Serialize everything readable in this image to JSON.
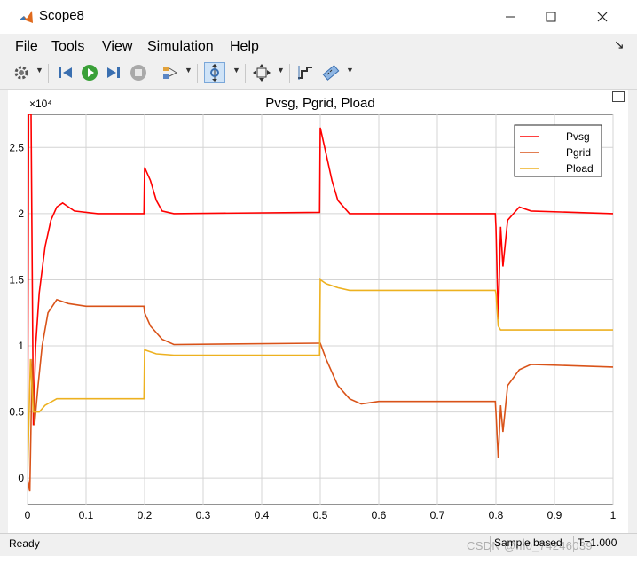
{
  "window": {
    "title": "Scope8"
  },
  "menu": {
    "items": [
      "File",
      "Tools",
      "View",
      "Simulation",
      "Help"
    ]
  },
  "toolbar": {
    "tools": [
      "settings-icon",
      "restore-icon",
      "run-icon",
      "step-forward-icon",
      "stop-icon",
      "highlight-icon",
      "zoom-icon",
      "fit-to-view-icon",
      "cursor-measure-icon",
      "signal-stats-icon"
    ]
  },
  "status": {
    "ready": "Ready",
    "sample": "Sample based",
    "time": "T=1.000"
  },
  "watermark": "CSDN @m0_74246039",
  "colors": {
    "pvsg": "#ff0000",
    "pgrid": "#d95319",
    "pload": "#edb120",
    "grid": "#d4d4d4"
  },
  "chart_data": {
    "type": "line",
    "title": "Pvsg, Pgrid, Pload",
    "exponent_label": "×10⁴",
    "xlim": [
      0,
      1
    ],
    "ylim": [
      -0.2,
      2.75
    ],
    "x_ticks": [
      0,
      0.1,
      0.2,
      0.3,
      0.4,
      0.5,
      0.6,
      0.7,
      0.8,
      0.9,
      1
    ],
    "x_tick_labels": [
      "0",
      "0.1",
      "0.2",
      "0.3",
      "0.4",
      "0.5",
      "0.6",
      "0.7",
      "0.8",
      "0.9",
      "1"
    ],
    "y_ticks": [
      0,
      0.5,
      1,
      1.5,
      2,
      2.5
    ],
    "y_tick_labels": [
      "0",
      "0.5",
      "1",
      "1.5",
      "2",
      "2.5"
    ],
    "legend_position": "top-right",
    "series": [
      {
        "name": "Pvsg",
        "color": "#ff0000",
        "points": [
          [
            0,
            0
          ],
          [
            0.002,
            2.75
          ],
          [
            0.006,
            2.75
          ],
          [
            0.01,
            0.4
          ],
          [
            0.014,
            1.0
          ],
          [
            0.02,
            1.4
          ],
          [
            0.03,
            1.75
          ],
          [
            0.04,
            1.95
          ],
          [
            0.05,
            2.05
          ],
          [
            0.06,
            2.08
          ],
          [
            0.08,
            2.02
          ],
          [
            0.12,
            2.0
          ],
          [
            0.199,
            2.0
          ],
          [
            0.2,
            2.35
          ],
          [
            0.21,
            2.25
          ],
          [
            0.22,
            2.1
          ],
          [
            0.23,
            2.02
          ],
          [
            0.25,
            2.0
          ],
          [
            0.499,
            2.01
          ],
          [
            0.5,
            2.65
          ],
          [
            0.51,
            2.45
          ],
          [
            0.52,
            2.25
          ],
          [
            0.53,
            2.1
          ],
          [
            0.55,
            2.0
          ],
          [
            0.799,
            2.0
          ],
          [
            0.8,
            1.9
          ],
          [
            0.804,
            1.2
          ],
          [
            0.808,
            1.9
          ],
          [
            0.812,
            1.6
          ],
          [
            0.82,
            1.95
          ],
          [
            0.84,
            2.05
          ],
          [
            0.86,
            2.02
          ],
          [
            1.0,
            2.0
          ]
        ]
      },
      {
        "name": "Pgrid",
        "color": "#d95319",
        "points": [
          [
            0,
            0.0
          ],
          [
            0.004,
            -0.1
          ],
          [
            0.008,
            0.9
          ],
          [
            0.012,
            0.4
          ],
          [
            0.018,
            0.7
          ],
          [
            0.025,
            1.0
          ],
          [
            0.035,
            1.25
          ],
          [
            0.05,
            1.35
          ],
          [
            0.07,
            1.32
          ],
          [
            0.1,
            1.3
          ],
          [
            0.199,
            1.3
          ],
          [
            0.2,
            1.25
          ],
          [
            0.21,
            1.15
          ],
          [
            0.23,
            1.05
          ],
          [
            0.25,
            1.01
          ],
          [
            0.499,
            1.02
          ],
          [
            0.5,
            1.02
          ],
          [
            0.51,
            0.9
          ],
          [
            0.53,
            0.7
          ],
          [
            0.55,
            0.6
          ],
          [
            0.57,
            0.56
          ],
          [
            0.6,
            0.58
          ],
          [
            0.799,
            0.58
          ],
          [
            0.8,
            0.5
          ],
          [
            0.804,
            0.15
          ],
          [
            0.808,
            0.55
          ],
          [
            0.812,
            0.35
          ],
          [
            0.82,
            0.7
          ],
          [
            0.84,
            0.82
          ],
          [
            0.86,
            0.86
          ],
          [
            1.0,
            0.84
          ]
        ]
      },
      {
        "name": "Pload",
        "color": "#edb120",
        "points": [
          [
            0,
            0.0
          ],
          [
            0.005,
            0.9
          ],
          [
            0.01,
            0.5
          ],
          [
            0.02,
            0.5
          ],
          [
            0.03,
            0.55
          ],
          [
            0.05,
            0.6
          ],
          [
            0.1,
            0.6
          ],
          [
            0.199,
            0.6
          ],
          [
            0.2,
            0.97
          ],
          [
            0.22,
            0.94
          ],
          [
            0.25,
            0.93
          ],
          [
            0.499,
            0.93
          ],
          [
            0.5,
            1.5
          ],
          [
            0.51,
            1.47
          ],
          [
            0.53,
            1.44
          ],
          [
            0.55,
            1.42
          ],
          [
            0.799,
            1.42
          ],
          [
            0.8,
            1.4
          ],
          [
            0.804,
            1.15
          ],
          [
            0.808,
            1.12
          ],
          [
            0.82,
            1.12
          ],
          [
            1.0,
            1.12
          ]
        ]
      }
    ]
  }
}
